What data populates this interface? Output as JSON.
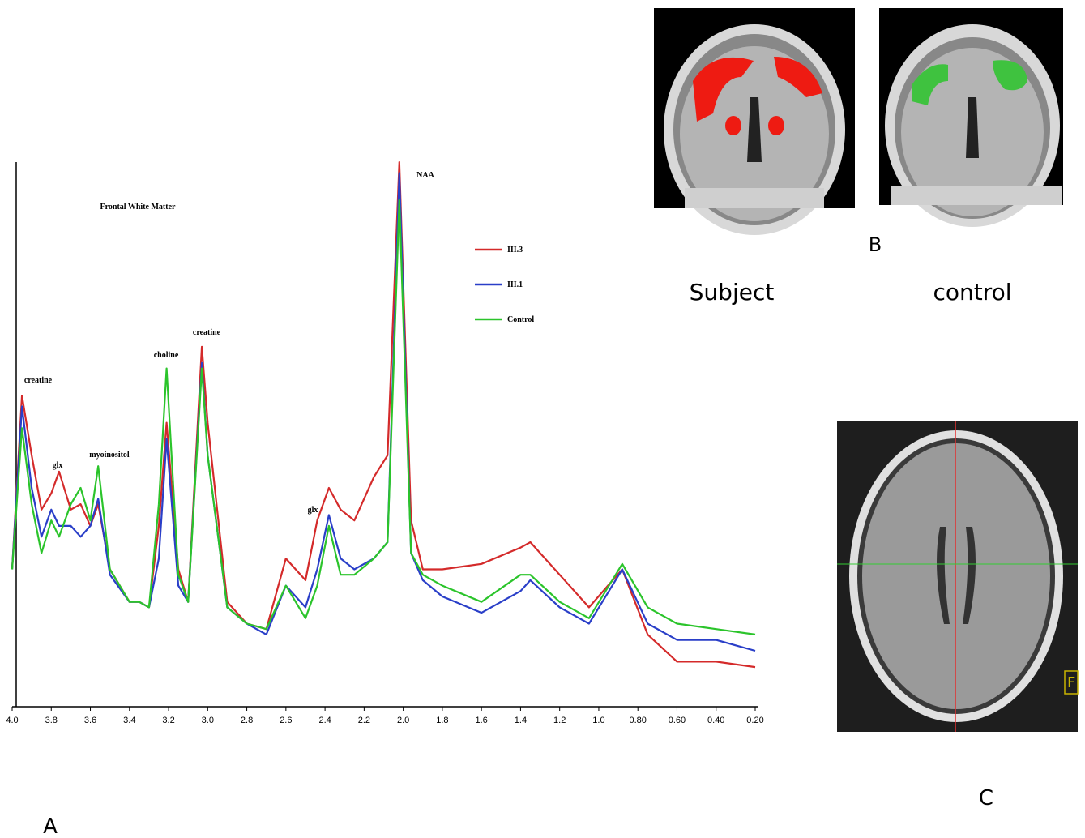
{
  "chart_data": {
    "type": "line",
    "title": "Frontal White Matter",
    "x": [
      4.0,
      3.95,
      3.9,
      3.85,
      3.8,
      3.76,
      3.7,
      3.65,
      3.6,
      3.56,
      3.5,
      3.4,
      3.35,
      3.3,
      3.25,
      3.21,
      3.15,
      3.1,
      3.03,
      3.0,
      2.9,
      2.8,
      2.7,
      2.6,
      2.5,
      2.44,
      2.38,
      2.32,
      2.25,
      2.15,
      2.08,
      2.02,
      1.96,
      1.9,
      1.8,
      1.6,
      1.4,
      1.35,
      1.2,
      1.05,
      0.88,
      0.75,
      0.6,
      0.4,
      0.2
    ],
    "series": [
      {
        "name": "III.3",
        "color": "#d42a2a",
        "values": [
          25,
          57,
          46,
          36,
          39,
          43,
          36,
          37,
          33,
          37,
          25,
          19,
          19,
          18,
          33,
          52,
          25,
          19,
          66,
          52,
          19,
          15,
          14,
          27,
          23,
          34,
          40,
          36,
          34,
          42,
          46,
          100,
          34,
          25,
          25,
          26,
          29,
          30,
          24,
          18,
          25,
          13,
          8,
          8,
          7
        ]
      },
      {
        "name": "III.1",
        "color": "#2a3fc8",
        "values": [
          25,
          55,
          40,
          31,
          36,
          33,
          33,
          31,
          33,
          38,
          24,
          19,
          19,
          18,
          27,
          49,
          22,
          19,
          63,
          46,
          18,
          15,
          13,
          22,
          18,
          25,
          35,
          27,
          25,
          27,
          30,
          98,
          28,
          23,
          20,
          17,
          21,
          23,
          18,
          15,
          25,
          15,
          12,
          12,
          10
        ]
      },
      {
        "name": "Control",
        "color": "#2bc42b",
        "values": [
          25,
          51,
          37,
          28,
          34,
          31,
          37,
          40,
          34,
          44,
          25,
          19,
          19,
          18,
          37,
          62,
          24,
          19,
          62,
          46,
          18,
          15,
          14,
          22,
          16,
          22,
          33,
          24,
          24,
          27,
          30,
          93,
          28,
          24,
          22,
          19,
          24,
          24,
          19,
          16,
          26,
          18,
          15,
          14,
          13
        ]
      }
    ],
    "annotations": [
      "creatine",
      "glx",
      "myoinositol",
      "choline",
      "creatine",
      "glx",
      "NAA"
    ],
    "xlim": [
      4.0,
      0.2
    ],
    "ylim": [
      0,
      105
    ],
    "xticks": [
      {
        "value": 4,
        "label": "4.0"
      },
      3.8,
      3.6,
      3.4,
      3.2,
      {
        "value": 3,
        "label": "3.0"
      },
      2.8,
      2.6,
      2.4,
      2.2,
      {
        "value": 2,
        "label": "2.0"
      },
      1.8,
      1.6,
      1.4,
      1.2,
      {
        "value": 1,
        "label": "1.0"
      },
      {
        "value": 0.8,
        "label": "0.80"
      },
      {
        "value": 0.6,
        "label": "0.60"
      },
      {
        "value": 0.4,
        "label": "0.40"
      },
      {
        "value": 0.2,
        "label": "0.20"
      }
    ]
  },
  "panels": {
    "a": "A",
    "b": "B",
    "c": "C"
  },
  "images": {
    "subject_label": "Subject",
    "control_label": "control",
    "scan_marker": "F"
  }
}
